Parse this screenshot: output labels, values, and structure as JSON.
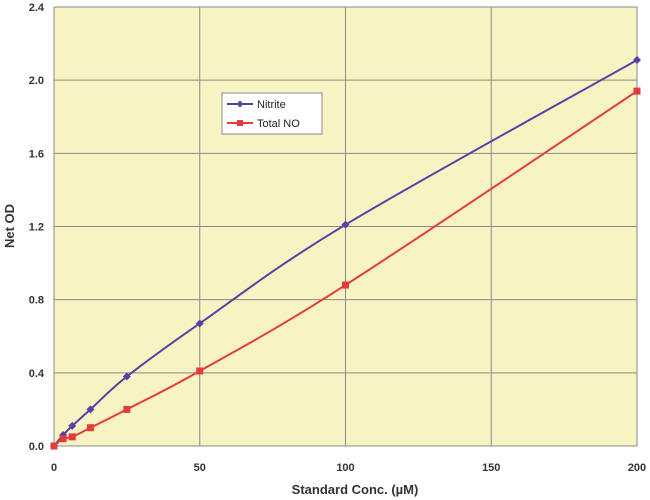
{
  "chart_data": {
    "type": "line",
    "title": "",
    "xlabel": "Standard Conc.  (µM)",
    "ylabel": "Net OD",
    "xlim": [
      0,
      200
    ],
    "ylim": [
      0,
      2.4
    ],
    "xticks": [
      "0",
      "50",
      "100",
      "150",
      "200"
    ],
    "yticks": [
      "0.0",
      "0.4",
      "0.8",
      "1.2",
      "1.6",
      "2.0",
      "2.4"
    ],
    "grid": true,
    "legend_position": "upper-left-center",
    "plot_background": "#f8f3c2",
    "series": [
      {
        "name": "Nitrite",
        "color": "#5b3fa6",
        "marker": "diamond",
        "points": [
          [
            0,
            0.0
          ],
          [
            3.125,
            0.06
          ],
          [
            6.25,
            0.11
          ],
          [
            12.5,
            0.2
          ],
          [
            25,
            0.38
          ],
          [
            50,
            0.67
          ],
          [
            100,
            1.21
          ],
          [
            200,
            2.11
          ]
        ]
      },
      {
        "name": "Total NO",
        "color": "#e33b3b",
        "marker": "square",
        "points": [
          [
            0,
            0.0
          ],
          [
            3.125,
            0.04
          ],
          [
            6.25,
            0.05
          ],
          [
            12.5,
            0.1
          ],
          [
            25,
            0.2
          ],
          [
            50,
            0.41
          ],
          [
            100,
            0.88
          ],
          [
            200,
            1.94
          ]
        ]
      }
    ]
  }
}
